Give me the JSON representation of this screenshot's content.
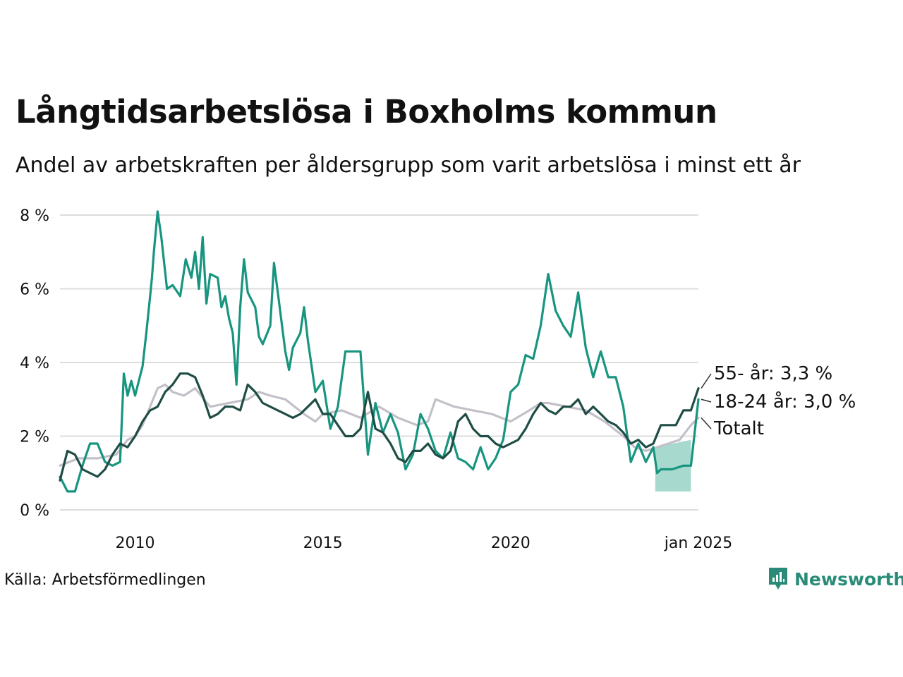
{
  "title": "Långtidsarbetslösa i Boxholms kommun",
  "subtitle": "Andel av arbetskraften per åldersgrupp som varit arbetslösa i minst ett år",
  "source": "Källa: Arbetsförmedlingen",
  "brand": {
    "name": "Newsworthy",
    "icon": "newsworthy-logo-icon"
  },
  "colors": {
    "young": "#17957f",
    "old": "#1f4d45",
    "total": "#c4c0c9",
    "band": "#9dd5ca",
    "grid": "#dddddd"
  },
  "chart_data": {
    "type": "line",
    "xlabel": "",
    "ylabel": "",
    "xlim": [
      2008.0,
      2025.0
    ],
    "ylim": [
      0,
      8
    ],
    "x_ticks": [
      2010,
      2015,
      2020,
      2025
    ],
    "x_tick_labels": [
      "2010",
      "2015",
      "2020",
      "jan 2025"
    ],
    "y_ticks": [
      0,
      2,
      4,
      6,
      8
    ],
    "y_tick_labels": [
      "0 %",
      "2 %",
      "4 %",
      "6 %",
      "8 %"
    ],
    "grid": true,
    "series": [
      {
        "name": "Totalt",
        "label": "Totalt",
        "color": "#c4c0c9",
        "x": [
          2008.0,
          2008.5,
          2009.0,
          2009.5,
          2009.8,
          2010.0,
          2010.2,
          2010.4,
          2010.6,
          2010.8,
          2011.0,
          2011.3,
          2011.6,
          2012.0,
          2012.5,
          2013.0,
          2013.3,
          2013.6,
          2014.0,
          2014.5,
          2014.8,
          2015.0,
          2015.5,
          2016.0,
          2016.5,
          2017.0,
          2017.5,
          2017.8,
          2018.0,
          2018.5,
          2019.0,
          2019.5,
          2020.0,
          2020.5,
          2020.8,
          2021.0,
          2021.5,
          2022.0,
          2022.5,
          2023.0,
          2023.3,
          2023.6,
          2023.9,
          2024.2,
          2024.5,
          2024.8,
          2025.0
        ],
        "values": [
          1.2,
          1.4,
          1.4,
          1.5,
          1.9,
          2.0,
          2.3,
          2.8,
          3.3,
          3.4,
          3.2,
          3.1,
          3.3,
          2.8,
          2.9,
          3.0,
          3.2,
          3.1,
          3.0,
          2.6,
          2.4,
          2.6,
          2.7,
          2.5,
          2.8,
          2.5,
          2.3,
          2.4,
          3.0,
          2.8,
          2.7,
          2.6,
          2.4,
          2.7,
          2.9,
          2.9,
          2.8,
          2.7,
          2.4,
          2.0,
          1.7,
          1.6,
          1.7,
          1.8,
          1.9,
          2.3,
          2.5
        ]
      },
      {
        "name": "18-24 år",
        "label": "18-24 år: 3,0 %",
        "color": "#17957f",
        "x": [
          2008.0,
          2008.2,
          2008.4,
          2008.6,
          2008.8,
          2009.0,
          2009.2,
          2009.4,
          2009.6,
          2009.7,
          2009.8,
          2009.9,
          2010.0,
          2010.2,
          2010.3,
          2010.4,
          2010.45,
          2010.5,
          2010.6,
          2010.7,
          2010.85,
          2011.0,
          2011.2,
          2011.35,
          2011.5,
          2011.6,
          2011.7,
          2011.8,
          2011.9,
          2012.0,
          2012.2,
          2012.3,
          2012.4,
          2012.5,
          2012.6,
          2012.7,
          2012.8,
          2012.9,
          2013.0,
          2013.2,
          2013.3,
          2013.4,
          2013.6,
          2013.7,
          2013.8,
          2014.0,
          2014.1,
          2014.2,
          2014.4,
          2014.5,
          2014.6,
          2014.8,
          2015.0,
          2015.2,
          2015.4,
          2015.6,
          2015.8,
          2016.0,
          2016.2,
          2016.4,
          2016.6,
          2016.8,
          2017.0,
          2017.2,
          2017.4,
          2017.6,
          2017.8,
          2018.0,
          2018.2,
          2018.4,
          2018.6,
          2018.8,
          2019.0,
          2019.2,
          2019.4,
          2019.6,
          2019.8,
          2020.0,
          2020.2,
          2020.4,
          2020.6,
          2020.8,
          2021.0,
          2021.2,
          2021.4,
          2021.6,
          2021.8,
          2022.0,
          2022.2,
          2022.4,
          2022.6,
          2022.8,
          2023.0,
          2023.2,
          2023.4,
          2023.6,
          2023.8,
          2023.9,
          2024.0,
          2024.3,
          2024.6,
          2024.8,
          2025.0
        ],
        "values": [
          0.9,
          0.5,
          0.5,
          1.2,
          1.8,
          1.8,
          1.3,
          1.2,
          1.3,
          3.7,
          3.1,
          3.5,
          3.1,
          3.9,
          4.8,
          5.8,
          6.3,
          7.0,
          8.1,
          7.4,
          6.0,
          6.1,
          5.8,
          6.8,
          6.3,
          7.0,
          6.0,
          7.4,
          5.6,
          6.4,
          6.3,
          5.5,
          5.8,
          5.2,
          4.8,
          3.4,
          5.5,
          6.8,
          5.9,
          5.5,
          4.7,
          4.5,
          5.0,
          6.7,
          5.9,
          4.3,
          3.8,
          4.4,
          4.8,
          5.5,
          4.6,
          3.2,
          3.5,
          2.2,
          2.8,
          4.3,
          4.3,
          4.3,
          1.5,
          2.9,
          2.1,
          2.6,
          2.1,
          1.1,
          1.5,
          2.6,
          2.2,
          1.6,
          1.4,
          2.1,
          1.4,
          1.3,
          1.1,
          1.7,
          1.1,
          1.4,
          1.9,
          3.2,
          3.4,
          4.2,
          4.1,
          5.0,
          6.4,
          5.4,
          5.0,
          4.7,
          5.9,
          4.4,
          3.6,
          4.3,
          3.6,
          3.6,
          2.8,
          1.3,
          1.8,
          1.3,
          1.7,
          1.0,
          1.1,
          1.1,
          1.2,
          1.2,
          3.0
        ]
      },
      {
        "name": "55- år",
        "label": "55- år: 3,3 %",
        "color": "#1f4d45",
        "x": [
          2008.0,
          2008.2,
          2008.4,
          2008.6,
          2008.8,
          2009.0,
          2009.2,
          2009.4,
          2009.6,
          2009.8,
          2010.0,
          2010.2,
          2010.4,
          2010.6,
          2010.8,
          2011.0,
          2011.2,
          2011.4,
          2011.6,
          2011.8,
          2012.0,
          2012.2,
          2012.4,
          2012.6,
          2012.8,
          2013.0,
          2013.2,
          2013.4,
          2013.6,
          2013.8,
          2014.0,
          2014.2,
          2014.4,
          2014.6,
          2014.8,
          2015.0,
          2015.2,
          2015.4,
          2015.6,
          2015.8,
          2016.0,
          2016.2,
          2016.4,
          2016.6,
          2016.8,
          2017.0,
          2017.2,
          2017.4,
          2017.6,
          2017.8,
          2018.0,
          2018.2,
          2018.4,
          2018.6,
          2018.8,
          2019.0,
          2019.2,
          2019.4,
          2019.6,
          2019.8,
          2020.0,
          2020.2,
          2020.4,
          2020.6,
          2020.8,
          2021.0,
          2021.2,
          2021.4,
          2021.6,
          2021.8,
          2022.0,
          2022.2,
          2022.4,
          2022.6,
          2022.8,
          2023.0,
          2023.2,
          2023.4,
          2023.6,
          2023.8,
          2024.0,
          2024.2,
          2024.4,
          2024.6,
          2024.8,
          2025.0
        ],
        "values": [
          0.8,
          1.6,
          1.5,
          1.1,
          1.0,
          0.9,
          1.1,
          1.5,
          1.8,
          1.7,
          2.0,
          2.4,
          2.7,
          2.8,
          3.2,
          3.4,
          3.7,
          3.7,
          3.6,
          3.1,
          2.5,
          2.6,
          2.8,
          2.8,
          2.7,
          3.4,
          3.2,
          2.9,
          2.8,
          2.7,
          2.6,
          2.5,
          2.6,
          2.8,
          3.0,
          2.6,
          2.6,
          2.3,
          2.0,
          2.0,
          2.2,
          3.2,
          2.2,
          2.1,
          1.8,
          1.4,
          1.3,
          1.6,
          1.6,
          1.8,
          1.5,
          1.4,
          1.6,
          2.4,
          2.6,
          2.2,
          2.0,
          2.0,
          1.8,
          1.7,
          1.8,
          1.9,
          2.2,
          2.6,
          2.9,
          2.7,
          2.6,
          2.8,
          2.8,
          3.0,
          2.6,
          2.8,
          2.6,
          2.4,
          2.3,
          2.1,
          1.8,
          1.9,
          1.7,
          1.8,
          2.3,
          2.3,
          2.3,
          2.7,
          2.7,
          3.3
        ]
      }
    ],
    "band": {
      "name": "18-24 år osäkerhet",
      "x": [
        2023.85,
        2024.8
      ],
      "lower": [
        0.5,
        0.5
      ],
      "upper": [
        1.7,
        1.9
      ]
    },
    "annotations": [
      {
        "text": "55- år: 3,3 %",
        "series": "55- år"
      },
      {
        "text": "18-24 år: 3,0 %",
        "series": "18-24 år"
      },
      {
        "text": "Totalt",
        "series": "Totalt"
      }
    ]
  }
}
